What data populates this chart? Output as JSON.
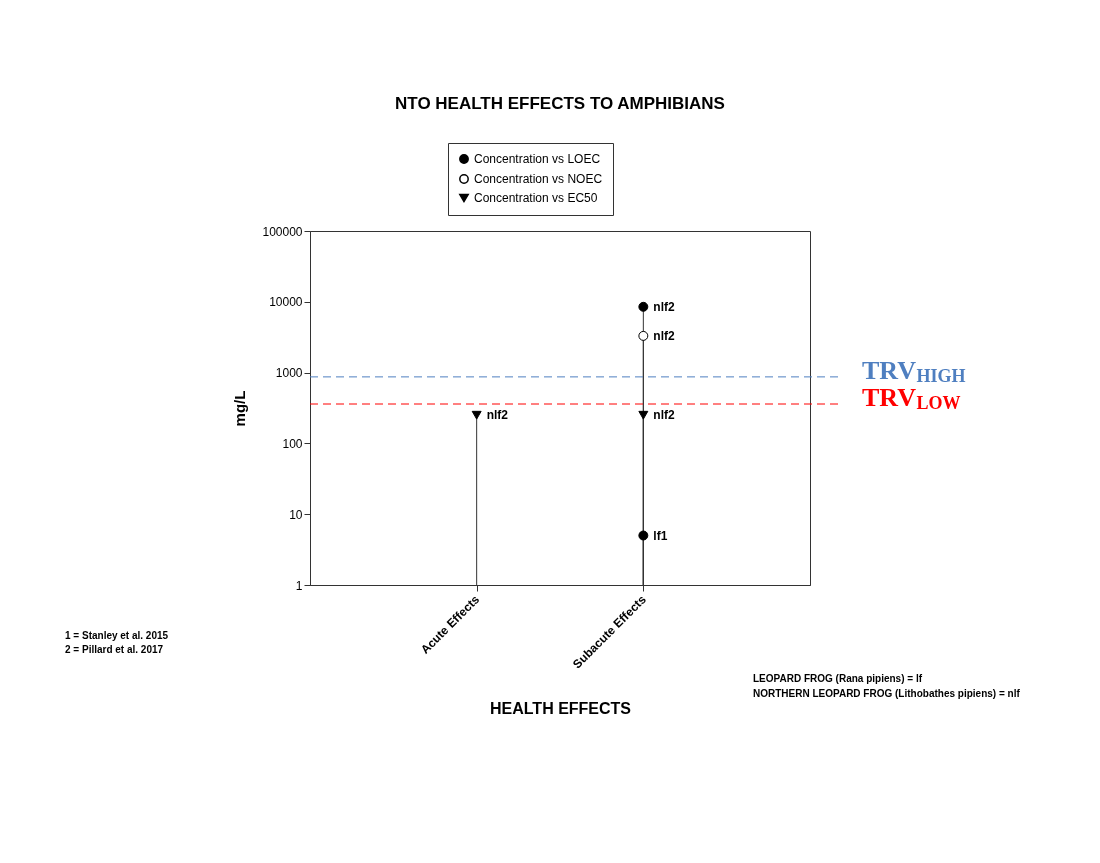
{
  "chart_data": {
    "type": "lollipop",
    "title": "NTO HEALTH EFFECTS TO AMPHIBIANS",
    "xlabel": "HEALTH EFFECTS",
    "ylabel": "mg/L",
    "categories": [
      "Acute Effects",
      "Subacute Effects"
    ],
    "series": [
      {
        "name": "Concentration vs LOEC",
        "color": "#000000",
        "marker": "circle",
        "x": [
          "Subacute Effects",
          "Subacute Effects"
        ],
        "values": [
          8500,
          5
        ],
        "value_labels": [
          "nlf2",
          "lf1"
        ]
      },
      {
        "name": "Concentration vs NOEC",
        "color": "#ffffff",
        "marker": "circle",
        "x": [
          "Subacute Effects"
        ],
        "values": [
          3300
        ],
        "value_labels": [
          "nlf2"
        ]
      },
      {
        "name": "Concentration vs EC50",
        "color": "#000000",
        "marker": "triangle",
        "x": [
          "Acute Effects",
          "Subacute Effects"
        ],
        "values": [
          250,
          250
        ],
        "value_labels": [
          "nlf2",
          "nlf2"
        ]
      }
    ],
    "log": "y",
    "ylim": [
      1,
      100000
    ],
    "yticks": [
      1,
      10,
      100,
      1000,
      10000,
      100000
    ],
    "grid": false,
    "legend": "top",
    "ref_lines": [
      {
        "axis": "y",
        "value": 870,
        "label": "TRV$_{HIGH}$",
        "color": "#4f7fc0",
        "line_style": "dashed"
      },
      {
        "axis": "y",
        "value": 360,
        "label": "TRV$_{LOW}$",
        "color": "#ff0000",
        "line_style": "dashed"
      }
    ],
    "annotations": [
      "1 = Stanley et al. 2015",
      "2 = Pillard et al. 2017",
      "LEOPARD FROG (Rana pipiens) = lf",
      "NORTHERN LEOPARD FROG (Lithobathes pipiens) = nlf"
    ]
  }
}
